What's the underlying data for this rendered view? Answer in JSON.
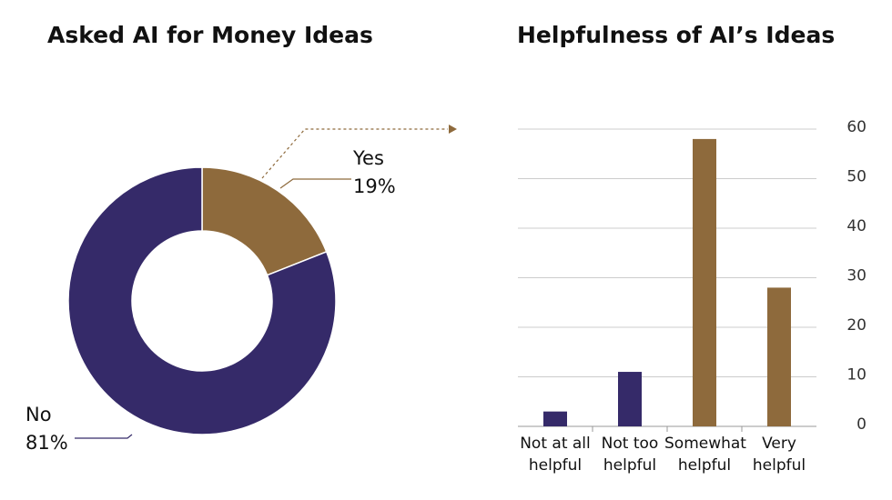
{
  "chart_data": [
    {
      "type": "donut",
      "title": "Asked AI for Money Ideas",
      "categories": [
        "Yes",
        "No"
      ],
      "values": [
        19,
        81
      ],
      "value_labels": [
        "19%",
        "81%"
      ],
      "colors": [
        "#8e6a3c",
        "#352a69"
      ]
    },
    {
      "type": "bar",
      "title": "Helpfulness of AI’s Ideas",
      "categories": [
        "Not at all helpful",
        "Not too helpful",
        "Somewhat helpful",
        "Very helpful"
      ],
      "values": [
        3,
        11,
        58,
        28
      ],
      "colors": [
        "#352a69",
        "#352a69",
        "#8e6a3c",
        "#8e6a3c"
      ],
      "ylim": [
        0,
        60
      ],
      "yticks": [
        0,
        10,
        20,
        30,
        40,
        50,
        60
      ],
      "grid": true,
      "axis_side": "right"
    }
  ]
}
